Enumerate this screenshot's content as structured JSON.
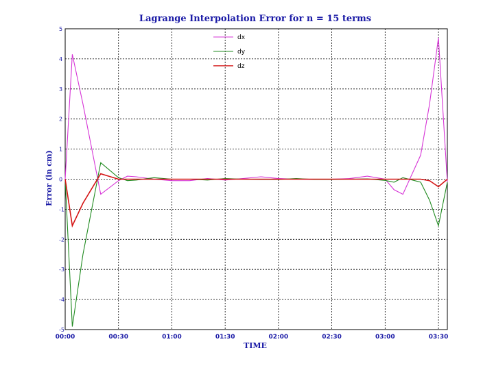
{
  "chart_data": {
    "type": "line",
    "title": "Lagrange Interpolation Error for n = 15 terms",
    "xlabel": "TIME",
    "ylabel": "Error (in cm)",
    "xlim": [
      0,
      215
    ],
    "ylim": [
      -5,
      5
    ],
    "y_ticks": [
      5,
      4,
      3,
      2,
      1,
      0,
      -1,
      -2,
      -3,
      -4,
      -5
    ],
    "y_tick_labels": [
      "5",
      "4",
      "3",
      "2",
      "1",
      "0",
      "-1",
      "-2",
      "-3",
      "-4",
      "-5"
    ],
    "x_ticks": [
      0,
      30,
      60,
      90,
      120,
      150,
      180,
      210
    ],
    "x_tick_labels": [
      "00:00",
      "00:30",
      "01:00",
      "01:30",
      "02:00",
      "02:30",
      "03:00",
      "03:30"
    ],
    "grid": true,
    "legend_position": "top-center",
    "x": [
      0,
      4,
      10,
      20,
      30,
      35,
      40,
      50,
      60,
      70,
      80,
      90,
      100,
      110,
      120,
      130,
      140,
      150,
      160,
      170,
      180,
      185,
      190,
      200,
      205,
      210,
      215
    ],
    "series": [
      {
        "name": "dx",
        "color": "#d633d6",
        "values": [
          0,
          4.15,
          2.5,
          -0.5,
          -0.05,
          0.1,
          0.08,
          0.0,
          -0.05,
          -0.05,
          0.02,
          -0.03,
          0.02,
          0.08,
          0.02,
          0.0,
          -0.01,
          0.0,
          0.02,
          0.1,
          0.0,
          -0.35,
          -0.5,
          0.8,
          2.5,
          4.7,
          -0.1
        ]
      },
      {
        "name": "dy",
        "color": "#1f8a1f",
        "values": [
          0,
          -4.9,
          -2.5,
          0.55,
          0.05,
          -0.05,
          -0.03,
          0.05,
          0.0,
          0.0,
          -0.03,
          0.02,
          0.0,
          -0.01,
          -0.01,
          0.02,
          -0.01,
          -0.01,
          0.0,
          0.01,
          -0.04,
          -0.1,
          0.05,
          -0.1,
          -0.7,
          -1.55,
          -0.1
        ]
      },
      {
        "name": "dz",
        "color": "#d41414",
        "values": [
          0,
          -1.55,
          -0.8,
          0.18,
          0.0,
          0.0,
          0.0,
          0.0,
          0.0,
          0.0,
          0.0,
          0.0,
          0.0,
          0.0,
          0.0,
          0.0,
          0.0,
          0.0,
          0.0,
          0.0,
          0.0,
          0.0,
          0.0,
          0.0,
          -0.05,
          -0.25,
          0.0
        ]
      }
    ]
  }
}
